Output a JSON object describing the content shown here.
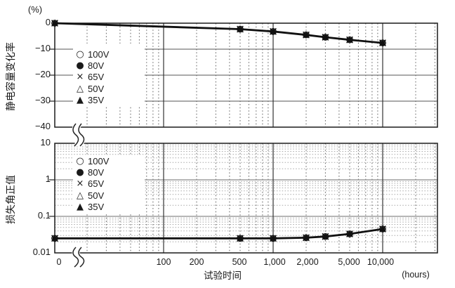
{
  "figure": {
    "x_axis": {
      "title": "试验时间",
      "unit": "(hours)",
      "tick_labels": [
        "0",
        "100",
        "200",
        "500",
        "1,000",
        "2,000",
        "5,000",
        "10,000"
      ],
      "scale": "logarithmic with axis break after 0"
    },
    "legend": {
      "items": [
        {
          "marker": "○",
          "label": "100V"
        },
        {
          "marker": "●",
          "label": "80V"
        },
        {
          "marker": "×",
          "label": "65V"
        },
        {
          "marker": "△",
          "label": "50V"
        },
        {
          "marker": "▲",
          "label": "35V"
        }
      ]
    },
    "top_chart": {
      "ylabel": "静电容量变化率",
      "unit_label": "(%)",
      "ytick_labels": [
        "0",
        "−10",
        "−20",
        "−30",
        "−40"
      ]
    },
    "bottom_chart": {
      "ylabel": "损失角正值",
      "ytick_labels": [
        "10",
        "1",
        "0.1",
        "0.01"
      ]
    }
  },
  "chart_data": [
    {
      "type": "line",
      "title": "",
      "xlabel": "试验时间 (hours)",
      "ylabel": "静电容量变化率 (%)",
      "xscale": "log",
      "yscale": "linear",
      "ylim": [
        -40,
        0
      ],
      "yticks": [
        0,
        -10,
        -20,
        -30,
        -40
      ],
      "x": [
        0,
        500,
        1000,
        2000,
        3000,
        5000,
        10000
      ],
      "series": [
        {
          "name": "100V",
          "values": [
            0,
            -2.3,
            -3.2,
            -4.5,
            -5.4,
            -6.4,
            -7.6
          ]
        },
        {
          "name": "80V",
          "values": [
            0,
            -2.3,
            -3.2,
            -4.5,
            -5.4,
            -6.4,
            -7.6
          ]
        },
        {
          "name": "65V",
          "values": [
            0,
            -2.3,
            -3.2,
            -4.5,
            -5.4,
            -6.4,
            -7.6
          ]
        },
        {
          "name": "50V",
          "values": [
            0,
            -2.3,
            -3.2,
            -4.5,
            -5.4,
            -6.4,
            -7.6
          ]
        },
        {
          "name": "35V",
          "values": [
            0,
            -2.3,
            -3.2,
            -4.5,
            -5.4,
            -6.4,
            -7.6
          ]
        }
      ],
      "note": "all five voltage series overlap on a single curve",
      "legend_position": "upper-left inside plot",
      "grid": true
    },
    {
      "type": "line",
      "title": "",
      "xlabel": "试验时间 (hours)",
      "ylabel": "损失角正值",
      "xscale": "log",
      "yscale": "log",
      "ylim": [
        0.01,
        10
      ],
      "yticks": [
        10,
        1,
        0.1,
        0.01
      ],
      "x": [
        0,
        500,
        1000,
        2000,
        3000,
        5000,
        10000
      ],
      "series": [
        {
          "name": "100V",
          "values": [
            0.025,
            0.025,
            0.025,
            0.026,
            0.028,
            0.033,
            0.045
          ]
        },
        {
          "name": "80V",
          "values": [
            0.025,
            0.025,
            0.025,
            0.026,
            0.028,
            0.033,
            0.045
          ]
        },
        {
          "name": "65V",
          "values": [
            0.025,
            0.025,
            0.025,
            0.026,
            0.028,
            0.033,
            0.045
          ]
        },
        {
          "name": "50V",
          "values": [
            0.025,
            0.025,
            0.025,
            0.026,
            0.028,
            0.033,
            0.045
          ]
        },
        {
          "name": "35V",
          "values": [
            0.025,
            0.025,
            0.025,
            0.026,
            0.028,
            0.033,
            0.045
          ]
        }
      ],
      "note": "all five voltage series overlap on a single curve",
      "legend_position": "upper-left inside plot",
      "grid": true
    }
  ]
}
